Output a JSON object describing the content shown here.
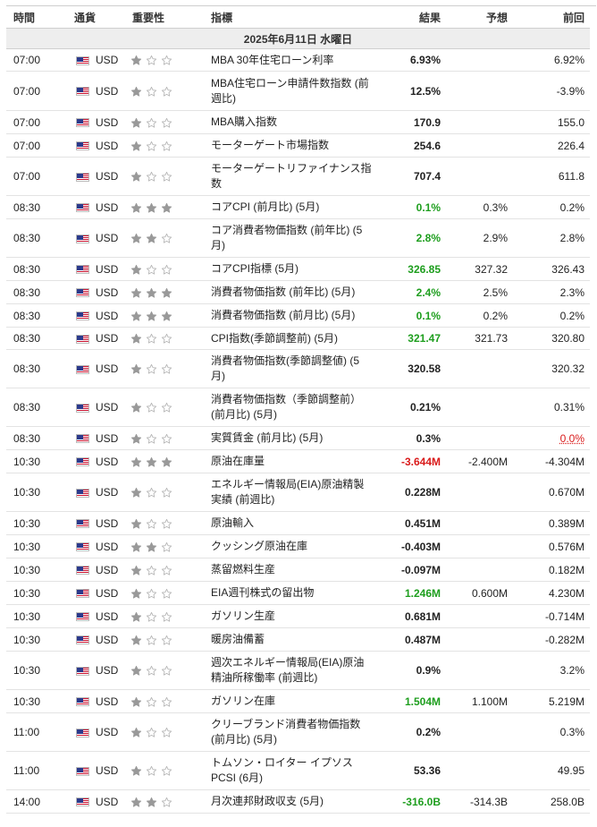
{
  "headers": {
    "time": "時間",
    "currency": "通貨",
    "importance": "重要性",
    "event": "指標",
    "actual": "結果",
    "forecast": "予想",
    "previous": "前回"
  },
  "date_label": "2025年6月11日 水曜日",
  "colors": {
    "green": "#1e9e1e",
    "red": "#d91a1a",
    "star": "#999999"
  },
  "rows": [
    {
      "time": "07:00",
      "currency": "USD",
      "importance": 1,
      "event": "MBA 30年住宅ローン利率",
      "actual": "6.93%",
      "actual_color": "",
      "forecast": "",
      "previous": "6.92%",
      "previous_color": "",
      "h": 25
    },
    {
      "time": "07:00",
      "currency": "USD",
      "importance": 1,
      "event": "MBA住宅ローン申請件数指数 (前週比)",
      "actual": "12.5%",
      "actual_color": "",
      "forecast": "",
      "previous": "-3.9%",
      "previous_color": "",
      "h": 44
    },
    {
      "time": "07:00",
      "currency": "USD",
      "importance": 1,
      "event": "MBA購入指数",
      "actual": "170.9",
      "actual_color": "",
      "forecast": "",
      "previous": "155.0",
      "previous_color": "",
      "h": 26
    },
    {
      "time": "07:00",
      "currency": "USD",
      "importance": 1,
      "event": "モーターゲート市場指数",
      "actual": "254.6",
      "actual_color": "",
      "forecast": "",
      "previous": "226.4",
      "previous_color": "",
      "h": 26
    },
    {
      "time": "07:00",
      "currency": "USD",
      "importance": 1,
      "event": "モーターゲートリファイナンス指数",
      "actual": "707.4",
      "actual_color": "",
      "forecast": "",
      "previous": "611.8",
      "previous_color": "",
      "h": 43
    },
    {
      "time": "08:30",
      "currency": "USD",
      "importance": 3,
      "event": "コアCPI (前月比) (5月)",
      "actual": "0.1%",
      "actual_color": "green",
      "forecast": "0.3%",
      "previous": "0.2%",
      "previous_color": "",
      "h": 26
    },
    {
      "time": "08:30",
      "currency": "USD",
      "importance": 2,
      "event": "コア消費者物価指数 (前年比) (5月)",
      "actual": "2.8%",
      "actual_color": "green",
      "forecast": "2.9%",
      "previous": "2.8%",
      "previous_color": "",
      "h": 43
    },
    {
      "time": "08:30",
      "currency": "USD",
      "importance": 1,
      "event": "コアCPI指標 (5月)",
      "actual": "326.85",
      "actual_color": "green",
      "forecast": "327.32",
      "previous": "326.43",
      "previous_color": "",
      "h": 26
    },
    {
      "time": "08:30",
      "currency": "USD",
      "importance": 3,
      "event": "消費者物価指数 (前年比) (5月)",
      "actual": "2.4%",
      "actual_color": "green",
      "forecast": "2.5%",
      "previous": "2.3%",
      "previous_color": "",
      "h": 26
    },
    {
      "time": "08:30",
      "currency": "USD",
      "importance": 3,
      "event": "消費者物価指数 (前月比) (5月)",
      "actual": "0.1%",
      "actual_color": "green",
      "forecast": "0.2%",
      "previous": "0.2%",
      "previous_color": "",
      "h": 26
    },
    {
      "time": "08:30",
      "currency": "USD",
      "importance": 1,
      "event": "CPI指数(季節調整前) (5月)",
      "actual": "321.47",
      "actual_color": "green",
      "forecast": "321.73",
      "previous": "320.80",
      "previous_color": "",
      "h": 25
    },
    {
      "time": "08:30",
      "currency": "USD",
      "importance": 1,
      "event": "消費者物価指数(季節調整値) (5月)",
      "actual": "320.58",
      "actual_color": "",
      "forecast": "",
      "previous": "320.32",
      "previous_color": "",
      "h": 43
    },
    {
      "time": "08:30",
      "currency": "USD",
      "importance": 1,
      "event": "消費者物価指数（季節調整前） (前月比) (5月)",
      "actual": "0.21%",
      "actual_color": "",
      "forecast": "",
      "previous": "0.31%",
      "previous_color": "",
      "h": 43
    },
    {
      "time": "08:30",
      "currency": "USD",
      "importance": 1,
      "event": "実質賃金 (前月比) (5月)",
      "actual": "0.3%",
      "actual_color": "",
      "forecast": "",
      "previous": "0.0%",
      "previous_color": "red",
      "h": 26
    },
    {
      "time": "10:30",
      "currency": "USD",
      "importance": 3,
      "event": "原油在庫量",
      "actual": "-3.644M",
      "actual_color": "red",
      "forecast": "-2.400M",
      "previous": "-4.304M",
      "previous_color": "",
      "h": 26
    },
    {
      "time": "10:30",
      "currency": "USD",
      "importance": 1,
      "event": "エネルギー情報局(EIA)原油精製実績 (前週比)",
      "actual": "0.228M",
      "actual_color": "",
      "forecast": "",
      "previous": "0.670M",
      "previous_color": "",
      "h": 43
    },
    {
      "time": "10:30",
      "currency": "USD",
      "importance": 1,
      "event": "原油輸入",
      "actual": "0.451M",
      "actual_color": "",
      "forecast": "",
      "previous": "0.389M",
      "previous_color": "",
      "h": 26
    },
    {
      "time": "10:30",
      "currency": "USD",
      "importance": 2,
      "event": "クッシング原油在庫",
      "actual": "-0.403M",
      "actual_color": "",
      "forecast": "",
      "previous": "0.576M",
      "previous_color": "",
      "h": 26
    },
    {
      "time": "10:30",
      "currency": "USD",
      "importance": 1,
      "event": "蒸留燃料生産",
      "actual": "-0.097M",
      "actual_color": "",
      "forecast": "",
      "previous": "0.182M",
      "previous_color": "",
      "h": 26
    },
    {
      "time": "10:30",
      "currency": "USD",
      "importance": 1,
      "event": "EIA週刊株式の留出物",
      "actual": "1.246M",
      "actual_color": "green",
      "forecast": "0.600M",
      "previous": "4.230M",
      "previous_color": "",
      "h": 26
    },
    {
      "time": "10:30",
      "currency": "USD",
      "importance": 1,
      "event": "ガソリン生産",
      "actual": "0.681M",
      "actual_color": "",
      "forecast": "",
      "previous": "-0.714M",
      "previous_color": "",
      "h": 26
    },
    {
      "time": "10:30",
      "currency": "USD",
      "importance": 1,
      "event": "暖房油備蓄",
      "actual": "0.487M",
      "actual_color": "",
      "forecast": "",
      "previous": "-0.282M",
      "previous_color": "",
      "h": 26
    },
    {
      "time": "10:30",
      "currency": "USD",
      "importance": 1,
      "event": "週次エネルギー情報局(EIA)原油精油所稼働率 (前週比)",
      "actual": "0.9%",
      "actual_color": "",
      "forecast": "",
      "previous": "3.2%",
      "previous_color": "",
      "h": 43
    },
    {
      "time": "10:30",
      "currency": "USD",
      "importance": 1,
      "event": "ガソリン在庫",
      "actual": "1.504M",
      "actual_color": "green",
      "forecast": "1.100M",
      "previous": "5.219M",
      "previous_color": "",
      "h": 26
    },
    {
      "time": "11:00",
      "currency": "USD",
      "importance": 1,
      "event": "クリーブランド消費者物価指数 (前月比) (5月)",
      "actual": "0.2%",
      "actual_color": "",
      "forecast": "",
      "previous": "0.3%",
      "previous_color": "",
      "h": 43
    },
    {
      "time": "11:00",
      "currency": "USD",
      "importance": 1,
      "event": "トムソン・ロイター イプソス PCSI (6月)",
      "actual": "53.36",
      "actual_color": "",
      "forecast": "",
      "previous": "49.95",
      "previous_color": "",
      "h": 43
    },
    {
      "time": "14:00",
      "currency": "USD",
      "importance": 2,
      "event": "月次連邦財政収支 (5月)",
      "actual": "-316.0B",
      "actual_color": "green",
      "forecast": "-314.3B",
      "previous": "258.0B",
      "previous_color": "",
      "h": 26
    }
  ]
}
